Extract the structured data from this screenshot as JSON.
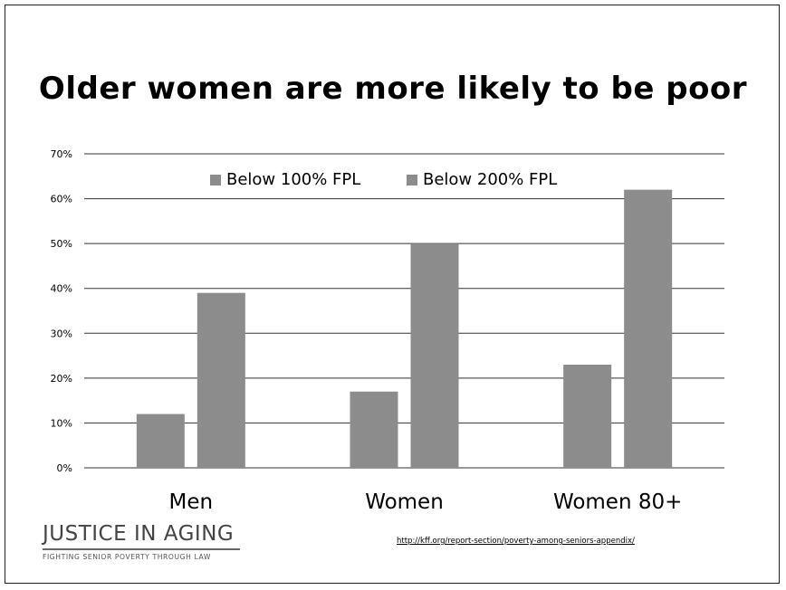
{
  "slide": {
    "title": "Older women are more likely to be poor",
    "logo": {
      "main": "JUSTICE IN AGING",
      "tagline": "FIGHTING SENIOR POVERTY THROUGH LAW"
    },
    "source_link": "http://kff.org/report-section/poverty-among-seniors-appendix/"
  },
  "chart_data": {
    "type": "bar",
    "title": "Older women are more likely to be poor",
    "categories": [
      "Men",
      "Women",
      "Women 80+"
    ],
    "series": [
      {
        "name": "Below 100% FPL",
        "values": [
          12,
          17,
          23
        ],
        "color": "#8c8c8c"
      },
      {
        "name": "Below 200% FPL",
        "values": [
          39,
          50,
          62
        ],
        "color": "#8c8c8c"
      }
    ],
    "ylim": [
      0,
      70
    ],
    "yticks": [
      0,
      10,
      20,
      30,
      40,
      50,
      60,
      70
    ],
    "ytick_labels": [
      "0%",
      "10%",
      "20%",
      "30%",
      "40%",
      "50%",
      "60%",
      "70%"
    ],
    "grid": true,
    "legend": "top-center",
    "gridline_color": "#333333"
  }
}
